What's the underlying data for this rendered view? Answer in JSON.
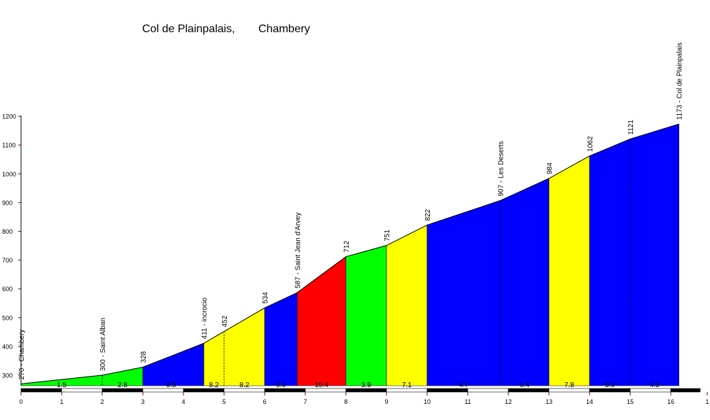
{
  "title": {
    "climb": "Col de Plainpalais,",
    "start": "Chambery"
  },
  "chart_data": {
    "type": "area",
    "title": "Col de Plainpalais,      Chambery",
    "xlabel": "",
    "ylabel": "",
    "xlim": [
      0,
      17
    ],
    "ylim": [
      250,
      1200
    ],
    "x_ticks": [
      "0",
      "1",
      "2",
      "3",
      "4",
      "5",
      "6",
      "7",
      "8",
      "9",
      "10",
      "11",
      "12",
      "13",
      "14",
      "15",
      "16",
      "1"
    ],
    "y_ticks": [
      "300",
      "400",
      "500",
      "600",
      "700",
      "800",
      "900",
      "1000",
      "1100",
      "1200"
    ],
    "profile": [
      {
        "x": 0,
        "y": 270
      },
      {
        "x": 2,
        "y": 300
      },
      {
        "x": 3,
        "y": 328
      },
      {
        "x": 4.5,
        "y": 411
      },
      {
        "x": 5,
        "y": 452
      },
      {
        "x": 6,
        "y": 534
      },
      {
        "x": 6.8,
        "y": 587
      },
      {
        "x": 8,
        "y": 712
      },
      {
        "x": 9,
        "y": 751
      },
      {
        "x": 10,
        "y": 822
      },
      {
        "x": 11.8,
        "y": 907
      },
      {
        "x": 13,
        "y": 984
      },
      {
        "x": 14,
        "y": 1062
      },
      {
        "x": 15,
        "y": 1121
      },
      {
        "x": 16.2,
        "y": 1173
      }
    ],
    "segments": [
      {
        "from": 0,
        "to": 3,
        "color": "#00ff00"
      },
      {
        "from": 3,
        "to": 4.5,
        "color": "#0000ff"
      },
      {
        "from": 4.5,
        "to": 6,
        "color": "#ffff00"
      },
      {
        "from": 6,
        "to": 6.8,
        "color": "#0000ff"
      },
      {
        "from": 6.8,
        "to": 8,
        "color": "#ff0000"
      },
      {
        "from": 8,
        "to": 9,
        "color": "#00ff00"
      },
      {
        "from": 9,
        "to": 10,
        "color": "#ffff00"
      },
      {
        "from": 10,
        "to": 13,
        "color": "#0000ff"
      },
      {
        "from": 13,
        "to": 14,
        "color": "#ffff00"
      },
      {
        "from": 14,
        "to": 16.2,
        "color": "#0000ff"
      }
    ],
    "gradient_labels": [
      {
        "x": 1,
        "text": "1.5"
      },
      {
        "x": 2.5,
        "text": "2.8"
      },
      {
        "x": 3.7,
        "text": "5.5"
      },
      {
        "x": 4.75,
        "text": "8.2"
      },
      {
        "x": 5.5,
        "text": "8.2"
      },
      {
        "x": 6.4,
        "text": "6.6"
      },
      {
        "x": 7.4,
        "text": "10.4"
      },
      {
        "x": 8.5,
        "text": "3.9"
      },
      {
        "x": 9.5,
        "text": "7.1"
      },
      {
        "x": 10.9,
        "text": "4.7"
      },
      {
        "x": 12.4,
        "text": "6.4"
      },
      {
        "x": 13.5,
        "text": "7.8"
      },
      {
        "x": 14.5,
        "text": "5.9"
      },
      {
        "x": 15.6,
        "text": "4.3"
      }
    ],
    "point_labels": [
      {
        "x": 0,
        "y": 270,
        "text": "270 - Chambery",
        "dashed": false
      },
      {
        "x": 2,
        "y": 300,
        "text": "300 - Saint Alban",
        "dashed": true
      },
      {
        "x": 3,
        "y": 328,
        "text": "328",
        "dashed": false
      },
      {
        "x": 4.5,
        "y": 411,
        "text": "411 - incrocio",
        "dashed": true
      },
      {
        "x": 5,
        "y": 452,
        "text": "452",
        "dashed": true
      },
      {
        "x": 6,
        "y": 534,
        "text": "534",
        "dashed": false
      },
      {
        "x": 6.8,
        "y": 587,
        "text": "587 - Saint Jean d'Arvey",
        "dashed": false
      },
      {
        "x": 8,
        "y": 712,
        "text": "712",
        "dashed": false
      },
      {
        "x": 9,
        "y": 751,
        "text": "751",
        "dashed": false
      },
      {
        "x": 10,
        "y": 822,
        "text": "822",
        "dashed": false
      },
      {
        "x": 11.8,
        "y": 907,
        "text": "907 - Les Deserts",
        "dashed": true
      },
      {
        "x": 13,
        "y": 984,
        "text": "984",
        "dashed": false
      },
      {
        "x": 14,
        "y": 1062,
        "text": "1062",
        "dashed": false
      },
      {
        "x": 15,
        "y": 1121,
        "text": "1121",
        "dashed": true
      },
      {
        "x": 16.2,
        "y": 1173,
        "text": "1173 - Col de Plainpalais",
        "dashed": false
      }
    ],
    "grid": false,
    "colors": {
      "green": "#00ff00",
      "blue": "#0000ff",
      "yellow": "#ffff00",
      "red": "#ff0000",
      "axis_tick": "#800000"
    }
  }
}
